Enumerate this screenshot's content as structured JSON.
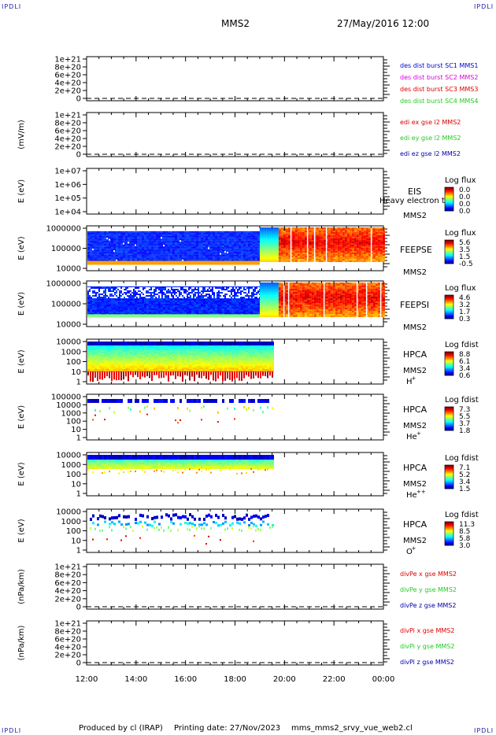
{
  "corner_mark": "IPDLI",
  "header": {
    "spacecraft": "MMS2",
    "datetime": "27/May/2016 12:00"
  },
  "footer": {
    "producer": "Produced by cl (IRAP)",
    "printing": "Printing date: 27/Nov/2023",
    "script": "mms_mms2_srvy_vue_web2.cl"
  },
  "time_axis": {
    "ticks": [
      "12:00",
      "14:00",
      "16:00",
      "18:00",
      "20:00",
      "22:00",
      "00:00"
    ],
    "range_hours": [
      12,
      24
    ]
  },
  "colors": {
    "blue": "#0000cc",
    "magenta": "#dd00dd",
    "red": "#dd0000",
    "green": "#22cc22",
    "dark_blue": "#0000aa",
    "orange": "#ff8800"
  },
  "chart_data": [
    {
      "type": "line",
      "title": "",
      "ylabel": "",
      "yticks": [
        "1e+21",
        "8e+20",
        "6e+20",
        "4e+20",
        "2e+20",
        "0"
      ],
      "ylim": [
        0,
        1e+21
      ],
      "series": [
        {
          "name": "des dist burst SC1 MMS1",
          "color": "#0000cc",
          "values": []
        },
        {
          "name": "des dist burst SC2 MMS2",
          "color": "#dd00dd",
          "values": []
        },
        {
          "name": "des dist burst SC3 MMS3",
          "color": "#dd0000",
          "values": []
        },
        {
          "name": "des dist burst SC4 MMS4",
          "color": "#22cc22",
          "values": []
        }
      ]
    },
    {
      "type": "line",
      "ylabel": "(mV/m)",
      "yticks": [
        "1e+21",
        "8e+20",
        "6e+20",
        "4e+20",
        "2e+20",
        "0"
      ],
      "ylim": [
        0,
        1e+21
      ],
      "series": [
        {
          "name": "edi ex gse l2 MMS2",
          "color": "#dd0000",
          "values": []
        },
        {
          "name": "edi ey gse l2 MMS2",
          "color": "#22cc22",
          "values": []
        },
        {
          "name": "edi ez gse l2 MMS2",
          "color": "#0000aa",
          "values": []
        }
      ]
    },
    {
      "type": "heatmap",
      "ylabel": "E (eV)",
      "scale": "log",
      "yticks": [
        "1e+07",
        "1e+06",
        "1e+05",
        "1e+04"
      ],
      "ylim": [
        10000.0,
        10000000.0
      ],
      "instrument": "EIS",
      "spacecraft": "MMS2",
      "note": "Heavy electron to",
      "colorbar": {
        "label": "Log flux",
        "ticks": [
          "0.0",
          "0.0",
          "0.0",
          "0.0"
        ]
      }
    },
    {
      "type": "heatmap",
      "ylabel": "E (eV)",
      "scale": "log",
      "yticks": [
        "1000000",
        "100000",
        "10000"
      ],
      "ylim": [
        10000.0,
        1000000.0
      ],
      "instrument": "FEEPSE",
      "spacecraft": "MMS2",
      "colorbar": {
        "label": "Log flux",
        "ticks": [
          "5.6",
          "3.5",
          "1.5",
          "-0.5"
        ]
      },
      "data_extent_hours": [
        12,
        24
      ]
    },
    {
      "type": "heatmap",
      "ylabel": "E (eV)",
      "scale": "log",
      "yticks": [
        "1000000",
        "100000",
        "10000"
      ],
      "ylim": [
        10000.0,
        1000000.0
      ],
      "instrument": "FEEPSI",
      "spacecraft": "MMS2",
      "colorbar": {
        "label": "Log flux",
        "ticks": [
          "4.6",
          "3.2",
          "1.7",
          "0.3"
        ]
      },
      "data_extent_hours": [
        12,
        24
      ]
    },
    {
      "type": "heatmap",
      "ylabel": "E (eV)",
      "scale": "log",
      "yticks": [
        "10000",
        "1000",
        "100",
        "10",
        "1"
      ],
      "ylim": [
        1,
        10000.0
      ],
      "instrument": "HPCA",
      "spacecraft": "MMS2",
      "species": "H",
      "charge": "+",
      "colorbar": {
        "label": "Log fdist",
        "ticks": [
          "8.8",
          "6.1",
          "3.4",
          "0.6"
        ]
      },
      "data_extent_hours": [
        12,
        19.5
      ]
    },
    {
      "type": "heatmap",
      "ylabel": "E (eV)",
      "scale": "log",
      "yticks": [
        "100000",
        "10000",
        "1000",
        "100",
        "10",
        "1"
      ],
      "ylim": [
        1,
        100000.0
      ],
      "instrument": "HPCA",
      "spacecraft": "MMS2",
      "species": "He",
      "charge": "+",
      "colorbar": {
        "label": "Log fdist",
        "ticks": [
          "7.3",
          "5.5",
          "3.7",
          "1.8"
        ]
      },
      "data_extent_hours": [
        12,
        19.5
      ]
    },
    {
      "type": "heatmap",
      "ylabel": "E (eV)",
      "scale": "log",
      "yticks": [
        "10000",
        "1000",
        "100",
        "10",
        "1"
      ],
      "ylim": [
        1,
        10000.0
      ],
      "instrument": "HPCA",
      "spacecraft": "MMS2",
      "species": "He",
      "charge": "++",
      "colorbar": {
        "label": "Log fdist",
        "ticks": [
          "7.1",
          "5.2",
          "3.4",
          "1.5"
        ]
      },
      "data_extent_hours": [
        12,
        19.5
      ]
    },
    {
      "type": "heatmap",
      "ylabel": "E (eV)",
      "scale": "log",
      "yticks": [
        "10000",
        "1000",
        "100",
        "10",
        "1"
      ],
      "ylim": [
        1,
        10000.0
      ],
      "instrument": "HPCA",
      "spacecraft": "MMS2",
      "species": "O",
      "charge": "+",
      "colorbar": {
        "label": "Log fdist",
        "ticks": [
          "11.3",
          "8.5",
          "5.8",
          "3.0"
        ]
      },
      "data_extent_hours": [
        12,
        19.5
      ]
    },
    {
      "type": "line",
      "ylabel": "(nPa/km)",
      "yticks": [
        "1e+21",
        "8e+20",
        "6e+20",
        "4e+20",
        "2e+20",
        "0"
      ],
      "ylim": [
        0,
        1e+21
      ],
      "series": [
        {
          "name": "divPe x gse MMS2",
          "color": "#dd0000",
          "values": []
        },
        {
          "name": "divPe y gse MMS2",
          "color": "#22cc22",
          "values": []
        },
        {
          "name": "divPe z gse MMS2",
          "color": "#0000aa",
          "values": []
        }
      ]
    },
    {
      "type": "line",
      "ylabel": "(nPa/km)",
      "yticks": [
        "1e+21",
        "8e+20",
        "6e+20",
        "4e+20",
        "2e+20",
        "0"
      ],
      "ylim": [
        0,
        1e+21
      ],
      "series": [
        {
          "name": "divPi x gse MMS2",
          "color": "#dd0000",
          "values": []
        },
        {
          "name": "divPi y gse MMS2",
          "color": "#22cc22",
          "values": []
        },
        {
          "name": "divPi z gse MMS2",
          "color": "#0000aa",
          "values": []
        }
      ]
    }
  ]
}
